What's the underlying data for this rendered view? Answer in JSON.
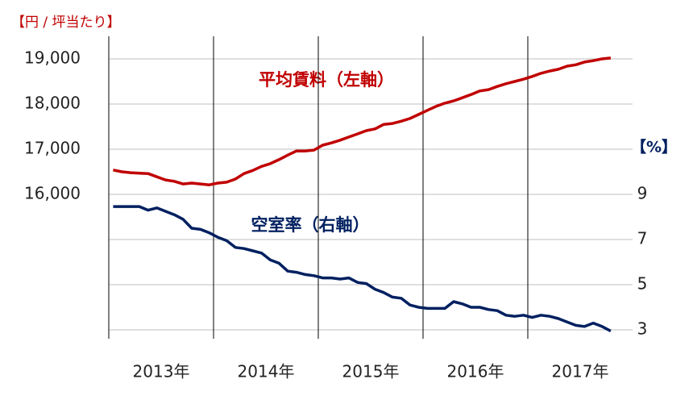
{
  "chart_data": {
    "type": "line",
    "y_axis_label": "【円 / 坪当たり】",
    "y2_axis_label": "【%】",
    "categories": [
      null,
      null,
      null,
      null,
      null,
      null,
      "2013年",
      null,
      null,
      null,
      null,
      null,
      null,
      null,
      null,
      null,
      null,
      null,
      "2014年",
      null,
      null,
      null,
      null,
      null,
      null,
      null,
      null,
      null,
      null,
      null,
      "2015年",
      null,
      null,
      null,
      null,
      null,
      null,
      null,
      null,
      null,
      null,
      null,
      "2016年",
      null,
      null,
      null,
      null,
      null,
      null,
      null,
      null,
      null,
      null,
      null,
      "2017年",
      null,
      null,
      null
    ],
    "series": [
      {
        "name": "平均賃料（左軸）",
        "color": "#c00000",
        "axis": "y",
        "values": [
          16540,
          16500,
          16480,
          16470,
          16460,
          16390,
          16320,
          16290,
          16230,
          16250,
          16230,
          16210,
          16250,
          16270,
          16340,
          16460,
          16530,
          16620,
          16680,
          16770,
          16870,
          16960,
          16960,
          16980,
          17090,
          17140,
          17200,
          17270,
          17340,
          17410,
          17450,
          17550,
          17570,
          17620,
          17680,
          17770,
          17860,
          17950,
          18020,
          18070,
          18140,
          18210,
          18290,
          18320,
          18390,
          18450,
          18500,
          18550,
          18610,
          18680,
          18730,
          18770,
          18840,
          18870,
          18930,
          18960,
          19000,
          19020
        ]
      },
      {
        "name": "空室率（右軸）",
        "color": "#002060",
        "axis": "y2",
        "values": [
          8.46,
          8.46,
          8.46,
          8.46,
          8.3,
          8.4,
          8.25,
          8.1,
          7.9,
          7.5,
          7.45,
          7.3,
          7.1,
          6.95,
          6.65,
          6.6,
          6.5,
          6.4,
          6.1,
          5.95,
          5.6,
          5.55,
          5.45,
          5.4,
          5.3,
          5.3,
          5.25,
          5.3,
          5.1,
          5.05,
          4.8,
          4.65,
          4.45,
          4.4,
          4.1,
          4.0,
          3.95,
          3.95,
          3.95,
          4.25,
          4.15,
          4.0,
          4.0,
          3.9,
          3.85,
          3.65,
          3.6,
          3.65,
          3.55,
          3.65,
          3.6,
          3.5,
          3.35,
          3.2,
          3.15,
          3.3,
          3.15,
          2.95
        ]
      }
    ],
    "ylim": [
      13000,
      19500
    ],
    "yticks": [
      {
        "value": 16000,
        "label": "16,000"
      },
      {
        "value": 17000,
        "label": "17,000"
      },
      {
        "value": 18000,
        "label": "18,000"
      },
      {
        "value": 19000,
        "label": "19,000"
      }
    ],
    "y2lim": [
      3,
      16
    ],
    "y2ticks": [
      3,
      5,
      7,
      9
    ],
    "grid": true
  }
}
